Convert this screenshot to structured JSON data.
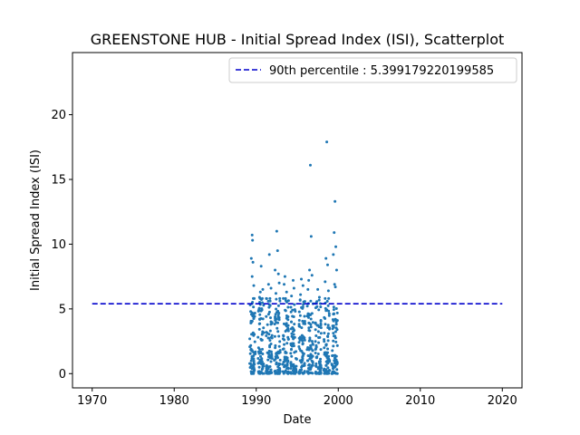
{
  "chart_data": {
    "type": "scatter",
    "title": "GREENSTONE HUB - Initial Spread Index (ISI), Scatterplot",
    "xlabel": "Date",
    "ylabel": "Initial Spread Index (ISI)",
    "xlim": [
      1967.6,
      2022.4
    ],
    "ylim": [
      -1.1,
      24.8
    ],
    "xticks": [
      1970,
      1980,
      1990,
      2000,
      2010,
      2020
    ],
    "yticks": [
      0,
      5,
      10,
      15,
      20
    ],
    "grid": false,
    "legend_position": "top-right",
    "point_color": "#1f77b4",
    "threshold": {
      "label": "90th percentile : 5.399179220199585",
      "value": 5.399179220199585,
      "x_range": [
        1970,
        2020
      ],
      "color": "#0000cc",
      "style": "dashed"
    },
    "season_ranges": [
      [
        1989.2,
        1989.9
      ],
      [
        1990.2,
        1990.95
      ],
      [
        1991.2,
        1991.95
      ],
      [
        1992.2,
        1992.95
      ],
      [
        1993.2,
        1993.95
      ],
      [
        1994.2,
        1994.95
      ],
      [
        1995.2,
        1995.95
      ],
      [
        1996.2,
        1996.95
      ],
      [
        1997.2,
        1997.95
      ],
      [
        1998.2,
        1998.95
      ],
      [
        1999.2,
        1999.9
      ]
    ],
    "points": [
      [
        1989.5,
        10.7
      ],
      [
        1989.55,
        10.3
      ],
      [
        1989.4,
        8.9
      ],
      [
        1989.6,
        8.6
      ],
      [
        1989.5,
        7.5
      ],
      [
        1989.7,
        6.8
      ],
      [
        1990.6,
        8.3
      ],
      [
        1990.5,
        6.3
      ],
      [
        1990.8,
        6.5
      ],
      [
        1990.4,
        5.9
      ],
      [
        1991.6,
        9.2
      ],
      [
        1991.5,
        6.9
      ],
      [
        1991.8,
        6.6
      ],
      [
        1991.7,
        5.6
      ],
      [
        1992.5,
        11.0
      ],
      [
        1992.6,
        9.5
      ],
      [
        1992.3,
        8.0
      ],
      [
        1992.7,
        7.7
      ],
      [
        1992.8,
        7.0
      ],
      [
        1992.4,
        6.2
      ],
      [
        1993.5,
        7.5
      ],
      [
        1993.4,
        6.9
      ],
      [
        1993.7,
        6.3
      ],
      [
        1993.3,
        5.8
      ],
      [
        1994.5,
        7.2
      ],
      [
        1994.6,
        6.6
      ],
      [
        1994.3,
        6.0
      ],
      [
        1995.5,
        7.3
      ],
      [
        1995.7,
        6.8
      ],
      [
        1995.4,
        6.1
      ],
      [
        1996.6,
        16.1
      ],
      [
        1996.7,
        10.6
      ],
      [
        1996.5,
        8.0
      ],
      [
        1996.8,
        7.6
      ],
      [
        1996.4,
        7.2
      ],
      [
        1996.3,
        6.5
      ],
      [
        1997.5,
        6.5
      ],
      [
        1997.7,
        5.9
      ],
      [
        1998.6,
        17.9
      ],
      [
        1998.5,
        8.9
      ],
      [
        1998.7,
        8.4
      ],
      [
        1998.4,
        7.1
      ],
      [
        1998.8,
        6.4
      ],
      [
        1999.6,
        13.3
      ],
      [
        1999.5,
        10.9
      ],
      [
        1999.7,
        9.8
      ],
      [
        1999.4,
        9.2
      ],
      [
        1999.8,
        8.0
      ],
      [
        1999.55,
        6.9
      ],
      [
        1999.65,
        6.7
      ]
    ]
  }
}
